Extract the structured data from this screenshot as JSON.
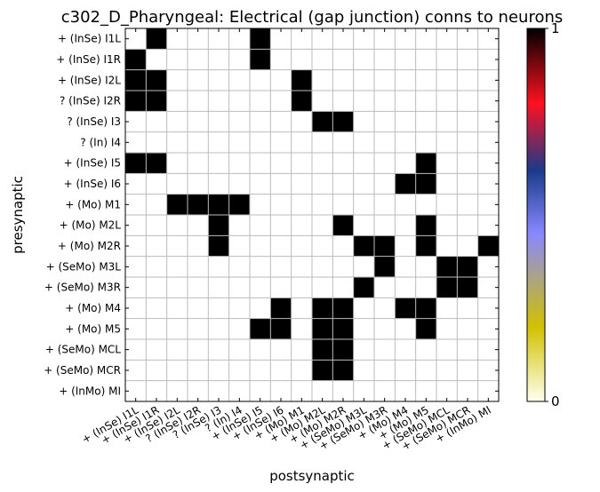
{
  "chart_data": {
    "type": "heatmap",
    "title": "c302_D_Pharyngeal: Electrical (gap junction) conns to neurons",
    "xlabel": "postsynaptic",
    "ylabel": "presynaptic",
    "rows": [
      "+ (InSe) I1L",
      "+ (InSe) I1R",
      "+ (InSe) I2L",
      "? (InSe) I2R",
      "? (InSe) I3",
      "? (In) I4",
      "+ (InSe) I5",
      "+ (InSe) I6",
      "+ (Mo) M1",
      "+ (Mo) M2L",
      "+ (Mo) M2R",
      "+ (SeMo) M3L",
      "+ (SeMo) M3R",
      "+ (Mo) M4",
      "+ (Mo) M5",
      "+ (SeMo) MCL",
      "+ (SeMo) MCR",
      "+ (InMo) MI"
    ],
    "columns": [
      "+ (InSe) I1L",
      "+ (InSe) I1R",
      "+ (InSe) I2L",
      "? (InSe) I2R",
      "? (InSe) I3",
      "? (In) I4",
      "+ (InSe) I5",
      "+ (InSe) I6",
      "+ (Mo) M1",
      "+ (Mo) M2L",
      "+ (Mo) M2R",
      "+ (SeMo) M3L",
      "+ (SeMo) M3R",
      "+ (Mo) M4",
      "+ (Mo) M5",
      "+ (SeMo) MCL",
      "+ (SeMo) MCR",
      "+ (InMo) MI"
    ],
    "values": [
      [
        0,
        1,
        0,
        0,
        0,
        0,
        1,
        0,
        0,
        0,
        0,
        0,
        0,
        0,
        0,
        0,
        0,
        0
      ],
      [
        1,
        0,
        0,
        0,
        0,
        0,
        1,
        0,
        0,
        0,
        0,
        0,
        0,
        0,
        0,
        0,
        0,
        0
      ],
      [
        1,
        1,
        0,
        0,
        0,
        0,
        0,
        0,
        1,
        0,
        0,
        0,
        0,
        0,
        0,
        0,
        0,
        0
      ],
      [
        1,
        1,
        0,
        0,
        0,
        0,
        0,
        0,
        1,
        0,
        0,
        0,
        0,
        0,
        0,
        0,
        0,
        0
      ],
      [
        0,
        0,
        0,
        0,
        0,
        0,
        0,
        0,
        0,
        1,
        1,
        0,
        0,
        0,
        0,
        0,
        0,
        0
      ],
      [
        0,
        0,
        0,
        0,
        0,
        0,
        0,
        0,
        0,
        0,
        0,
        0,
        0,
        0,
        0,
        0,
        0,
        0
      ],
      [
        1,
        1,
        0,
        0,
        0,
        0,
        0,
        0,
        0,
        0,
        0,
        0,
        0,
        0,
        1,
        0,
        0,
        0
      ],
      [
        0,
        0,
        0,
        0,
        0,
        0,
        0,
        0,
        0,
        0,
        0,
        0,
        0,
        1,
        1,
        0,
        0,
        0
      ],
      [
        0,
        0,
        1,
        1,
        1,
        1,
        0,
        0,
        0,
        0,
        0,
        0,
        0,
        0,
        0,
        0,
        0,
        0
      ],
      [
        0,
        0,
        0,
        0,
        1,
        0,
        0,
        0,
        0,
        0,
        1,
        0,
        0,
        0,
        1,
        0,
        0,
        0
      ],
      [
        0,
        0,
        0,
        0,
        1,
        0,
        0,
        0,
        0,
        0,
        0,
        1,
        1,
        0,
        1,
        0,
        0,
        1
      ],
      [
        0,
        0,
        0,
        0,
        0,
        0,
        0,
        0,
        0,
        0,
        0,
        0,
        1,
        0,
        0,
        1,
        1,
        0
      ],
      [
        0,
        0,
        0,
        0,
        0,
        0,
        0,
        0,
        0,
        0,
        0,
        1,
        0,
        0,
        0,
        1,
        1,
        0
      ],
      [
        0,
        0,
        0,
        0,
        0,
        0,
        0,
        1,
        0,
        1,
        1,
        0,
        0,
        1,
        1,
        0,
        0,
        0
      ],
      [
        0,
        0,
        0,
        0,
        0,
        0,
        1,
        1,
        0,
        1,
        1,
        0,
        0,
        0,
        1,
        0,
        0,
        0
      ],
      [
        0,
        0,
        0,
        0,
        0,
        0,
        0,
        0,
        0,
        1,
        1,
        0,
        0,
        0,
        0,
        0,
        0,
        0
      ],
      [
        0,
        0,
        0,
        0,
        0,
        0,
        0,
        0,
        0,
        1,
        1,
        0,
        0,
        0,
        0,
        0,
        0,
        0
      ],
      [
        0,
        0,
        0,
        0,
        0,
        0,
        0,
        0,
        0,
        0,
        0,
        0,
        0,
        0,
        0,
        0,
        0,
        0
      ]
    ],
    "vmin": 0,
    "vmax": 1,
    "colorbar": {
      "tick_labels": [
        "0",
        "1"
      ],
      "stops": [
        "#fffff0",
        "#d2c000",
        "#8888ff",
        "#1a3a8a",
        "#ff1020",
        "#000000"
      ]
    },
    "grid": true,
    "colors": {
      "on": "#000000",
      "off": "#ffffff",
      "grid": "#bbbbbb"
    }
  }
}
